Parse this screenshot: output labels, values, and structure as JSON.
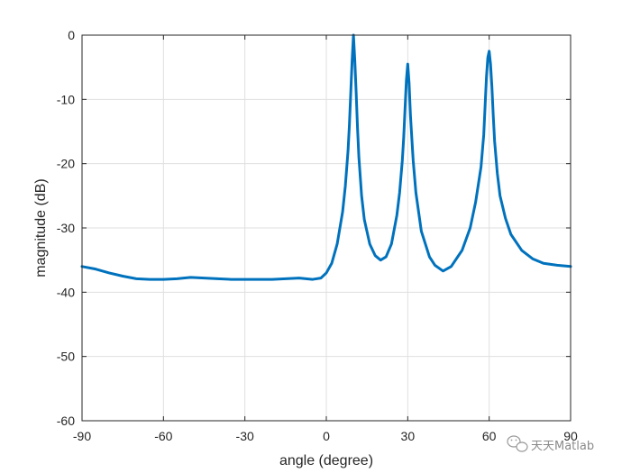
{
  "chart_data": {
    "type": "line",
    "title": "",
    "xlabel": "angle (degree)",
    "ylabel": "magnitude (dB)",
    "xlim": [
      -90,
      90
    ],
    "ylim": [
      -60,
      0
    ],
    "xticks": [
      -90,
      -60,
      -30,
      0,
      30,
      60,
      90
    ],
    "yticks": [
      0,
      -10,
      -20,
      -30,
      -40,
      -50,
      -60
    ],
    "xtick_labels": [
      "-90",
      "-60",
      "-30",
      "0",
      "30",
      "60",
      "90"
    ],
    "ytick_labels": [
      "0",
      "-10",
      "-20",
      "-30",
      "-40",
      "-50",
      "-60"
    ],
    "grid": true,
    "line_color": "#0072BD",
    "series": [
      {
        "x": [
          -90,
          -85,
          -80,
          -75,
          -70,
          -65,
          -60,
          -55,
          -50,
          -45,
          -40,
          -35,
          -30,
          -25,
          -20,
          -15,
          -10,
          -5,
          -2,
          0,
          2,
          4,
          6,
          7,
          8,
          8.5,
          9,
          9.5,
          10,
          10.5,
          11,
          11.5,
          12,
          13,
          14,
          16,
          18,
          20,
          22,
          24,
          26,
          27,
          28,
          28.5,
          29,
          29.5,
          30,
          30.5,
          31,
          32,
          33,
          35,
          38,
          40,
          43,
          46,
          50,
          53,
          55,
          57,
          58,
          58.5,
          59,
          59.5,
          60,
          60.5,
          61,
          61.5,
          62,
          63,
          64,
          66,
          68,
          72,
          76,
          80,
          85,
          90
        ],
        "y": [
          -36.0,
          -36.4,
          -37.0,
          -37.5,
          -37.9,
          -38.0,
          -38.0,
          -37.9,
          -37.7,
          -37.8,
          -37.9,
          -38.0,
          -38.0,
          -38.0,
          -38.0,
          -37.9,
          -37.8,
          -38.0,
          -37.8,
          -37.0,
          -35.5,
          -32.5,
          -27.5,
          -23.5,
          -18.0,
          -14.0,
          -9.0,
          -4.0,
          0.0,
          -4.0,
          -9.0,
          -14.5,
          -19.0,
          -25.0,
          -28.7,
          -32.5,
          -34.3,
          -35.0,
          -34.5,
          -32.5,
          -28.0,
          -24.5,
          -19.5,
          -16.0,
          -11.5,
          -7.0,
          -4.5,
          -7.5,
          -12.5,
          -19.5,
          -24.5,
          -30.5,
          -34.5,
          -35.8,
          -36.7,
          -36.0,
          -33.5,
          -30.0,
          -26.0,
          -20.5,
          -15.5,
          -11.0,
          -6.5,
          -3.5,
          -2.5,
          -4.5,
          -8.0,
          -12.5,
          -16.5,
          -21.5,
          -25.0,
          -28.5,
          -31.0,
          -33.5,
          -34.8,
          -35.5,
          -35.8,
          -36.0
        ]
      }
    ]
  },
  "watermark": {
    "text": "天天Matlab",
    "icon": "wechat-icon"
  }
}
